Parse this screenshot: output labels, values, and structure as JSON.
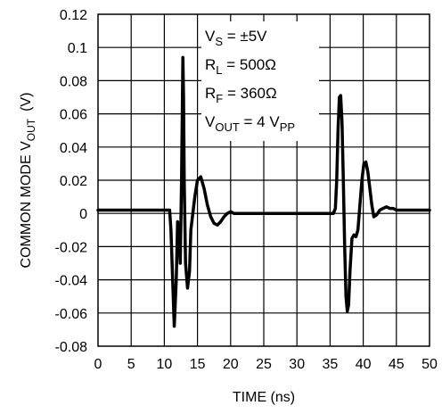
{
  "chart_data": {
    "type": "line",
    "xlabel": "TIME (ns)",
    "ylabel_main": "COMMON MODE V",
    "ylabel_sub": "OUT",
    "ylabel_unit": "(V)",
    "xlim": [
      0,
      50
    ],
    "ylim": [
      -0.08,
      0.12
    ],
    "x_ticks": [
      0,
      5,
      10,
      15,
      20,
      25,
      30,
      35,
      40,
      45,
      50
    ],
    "x_tick_labels": [
      "0",
      "5",
      "10",
      "15",
      "20",
      "25",
      "30",
      "35",
      "40",
      "45",
      "50"
    ],
    "y_ticks": [
      -0.08,
      -0.06,
      -0.04,
      -0.02,
      0,
      0.02,
      0.04,
      0.06,
      0.08,
      0.1,
      0.12
    ],
    "y_tick_labels": [
      "-0.08",
      "-0.06",
      "-0.04",
      "-0.02",
      "0",
      "0.02",
      "0.04",
      "0.06",
      "0.08",
      "0.1",
      "0.12"
    ],
    "grid": true,
    "line_color": "#000000",
    "annotations": [
      {
        "main": "V",
        "sub": "S",
        "rest": " = ±5V",
        "sub2": ""
      },
      {
        "main": "R",
        "sub": "L",
        "rest": " = 500Ω",
        "sub2": ""
      },
      {
        "main": "R",
        "sub": "F",
        "rest": " = 360Ω",
        "sub2": ""
      },
      {
        "main": "V",
        "sub": "OUT",
        "rest": " = 4 V",
        "sub2": "PP"
      }
    ],
    "series": [
      {
        "x": [
          0,
          5,
          10.8,
          11.0,
          11.3,
          11.5,
          11.8,
          12.0,
          12.2,
          12.4,
          12.6,
          12.8,
          12.9,
          13.0,
          13.2,
          13.5,
          13.8,
          14.0,
          14.3,
          14.6,
          15.0,
          15.5,
          16.0,
          16.5,
          17.0,
          17.5,
          18.0,
          18.5,
          19.0,
          19.5,
          20.0,
          20.5,
          21.0,
          23,
          25,
          30,
          35.5,
          35.8,
          36.0,
          36.2,
          36.4,
          36.6,
          36.8,
          37.0,
          37.2,
          37.4,
          37.6,
          37.8,
          38.0,
          38.3,
          38.6,
          38.9,
          39.2,
          39.5,
          39.8,
          40.1,
          40.4,
          40.7,
          41.0,
          41.3,
          41.6,
          42.0,
          42.5,
          43.0,
          43.5,
          44.0,
          44.5,
          45.0,
          46.0,
          47.0,
          48.0,
          50.0
        ],
        "y": [
          0.002,
          0.002,
          0.002,
          -0.01,
          -0.045,
          -0.068,
          -0.04,
          -0.005,
          -0.01,
          -0.03,
          0.02,
          0.094,
          0.07,
          0.02,
          -0.03,
          -0.045,
          -0.035,
          -0.01,
          0.0,
          0.01,
          0.02,
          0.022,
          0.015,
          0.005,
          -0.002,
          -0.006,
          -0.007,
          -0.005,
          -0.002,
          0.0,
          0.001,
          0.0,
          0.0,
          0.0,
          0.0,
          0.0,
          0.0,
          0.003,
          0.02,
          0.05,
          0.07,
          0.071,
          0.055,
          0.02,
          -0.02,
          -0.05,
          -0.059,
          -0.055,
          -0.035,
          -0.015,
          -0.013,
          -0.014,
          -0.01,
          0.005,
          0.02,
          0.03,
          0.031,
          0.025,
          0.015,
          0.005,
          -0.002,
          -0.001,
          0.002,
          0.003,
          0.004,
          0.003,
          0.003,
          0.002,
          0.002,
          0.002,
          0.002,
          0.002
        ]
      }
    ]
  }
}
